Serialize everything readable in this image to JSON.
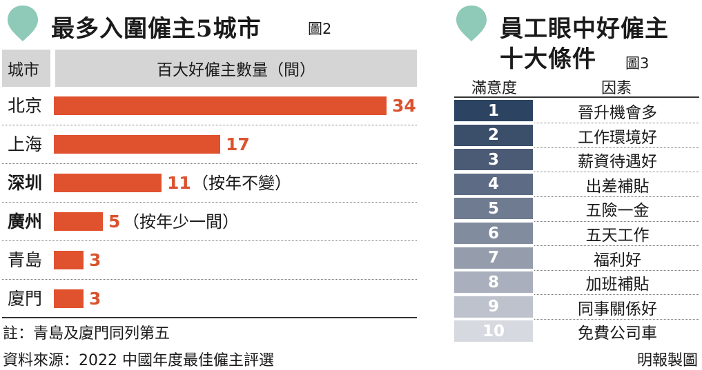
{
  "left": {
    "title": "最多入圍僱主5城市",
    "figure_tag": "圖2",
    "header_city": "城市",
    "header_count": "百大好僱主數量（間）",
    "footnote": "註：青島及廈門同列第五",
    "source": "資料來源：2022 中國年度最佳僱主評選"
  },
  "right": {
    "title_line1": "員工眼中好僱主",
    "title_line2": "十大條件",
    "figure_tag": "圖3",
    "header_rank": "滿意度",
    "header_factor": "因素",
    "credit": "明報製圖",
    "rows": [
      {
        "rank": "1",
        "factor": "晉升機會多",
        "color": "#2c4462"
      },
      {
        "rank": "2",
        "factor": "工作環境好",
        "color": "#3b4f6b"
      },
      {
        "rank": "3",
        "factor": "薪資待遇好",
        "color": "#4b5b76"
      },
      {
        "rank": "4",
        "factor": "出差補貼",
        "color": "#5d6b84"
      },
      {
        "rank": "5",
        "factor": "五險一金",
        "color": "#6f7b91"
      },
      {
        "rank": "6",
        "factor": "五天工作",
        "color": "#828c9f"
      },
      {
        "rank": "7",
        "factor": "福利好",
        "color": "#959dad"
      },
      {
        "rank": "8",
        "factor": "加班補貼",
        "color": "#a9afbc"
      },
      {
        "rank": "9",
        "factor": "同事關係好",
        "color": "#bdc2cc"
      },
      {
        "rank": "10",
        "factor": "免費公司車",
        "color": "#d6d9df"
      }
    ]
  },
  "colors": {
    "bar": "#e0512e",
    "value_text": "#d9532e",
    "pin": "#8fc9b8",
    "header_bg": "#d5d5d5"
  },
  "chart_data": {
    "type": "bar",
    "orientation": "horizontal",
    "title": "最多入圍僱主5城市",
    "xlabel": "百大好僱主數量（間）",
    "ylabel": "城市",
    "categories": [
      "北京",
      "上海",
      "深圳",
      "廣州",
      "青島",
      "廈門"
    ],
    "values": [
      34,
      17,
      11,
      5,
      3,
      3
    ],
    "value_labels": [
      "34",
      "17",
      "11",
      "5",
      "3",
      "3"
    ],
    "annotations": [
      "",
      "",
      "（按年不變）",
      "（按年少一間）",
      "",
      ""
    ],
    "bold_categories": [
      false,
      false,
      true,
      true,
      false,
      false
    ],
    "xlim": [
      0,
      34
    ],
    "grid": false,
    "legend": "none"
  }
}
